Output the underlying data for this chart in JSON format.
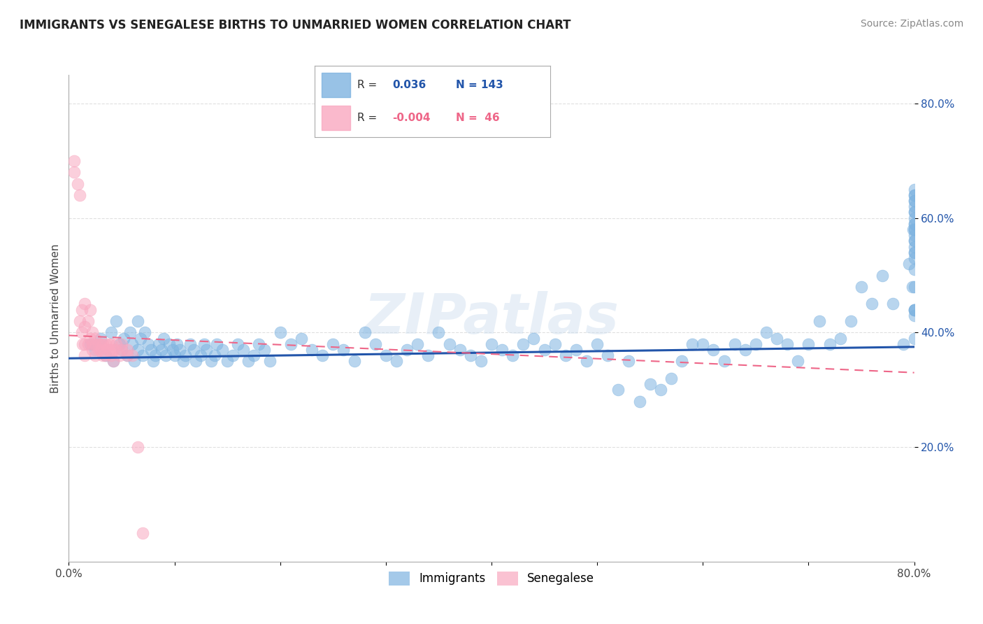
{
  "title": "IMMIGRANTS VS SENEGALESE BIRTHS TO UNMARRIED WOMEN CORRELATION CHART",
  "source": "Source: ZipAtlas.com",
  "ylabel": "Births to Unmarried Women",
  "watermark": "ZIPatlas",
  "xlim": [
    0.0,
    0.8
  ],
  "ylim": [
    0.0,
    0.85
  ],
  "ytick_positions": [
    0.2,
    0.4,
    0.6,
    0.8
  ],
  "ytick_labels": [
    "20.0%",
    "40.0%",
    "60.0%",
    "80.0%"
  ],
  "blue_color": "#7EB3E0",
  "pink_color": "#F9A8C0",
  "blue_line_color": "#2255AA",
  "pink_line_color": "#EE6688",
  "grid_color": "#DDDDDD",
  "background_color": "#FFFFFF",
  "immigrants_x": [
    0.02,
    0.025,
    0.03,
    0.035,
    0.04,
    0.042,
    0.045,
    0.048,
    0.05,
    0.052,
    0.055,
    0.058,
    0.06,
    0.062,
    0.065,
    0.065,
    0.068,
    0.07,
    0.072,
    0.075,
    0.078,
    0.08,
    0.082,
    0.085,
    0.088,
    0.09,
    0.092,
    0.095,
    0.098,
    0.1,
    0.102,
    0.105,
    0.108,
    0.11,
    0.115,
    0.118,
    0.12,
    0.125,
    0.128,
    0.13,
    0.135,
    0.138,
    0.14,
    0.145,
    0.15,
    0.155,
    0.16,
    0.165,
    0.17,
    0.175,
    0.18,
    0.185,
    0.19,
    0.2,
    0.21,
    0.22,
    0.23,
    0.24,
    0.25,
    0.26,
    0.27,
    0.28,
    0.29,
    0.3,
    0.31,
    0.32,
    0.33,
    0.34,
    0.35,
    0.36,
    0.37,
    0.38,
    0.39,
    0.4,
    0.41,
    0.42,
    0.43,
    0.44,
    0.45,
    0.46,
    0.47,
    0.48,
    0.49,
    0.5,
    0.51,
    0.52,
    0.53,
    0.54,
    0.55,
    0.56,
    0.57,
    0.58,
    0.59,
    0.6,
    0.61,
    0.62,
    0.63,
    0.64,
    0.65,
    0.66,
    0.67,
    0.68,
    0.69,
    0.7,
    0.71,
    0.72,
    0.73,
    0.74,
    0.75,
    0.76,
    0.77,
    0.78,
    0.79,
    0.795,
    0.798,
    0.799,
    0.8,
    0.8,
    0.8,
    0.8,
    0.8,
    0.8,
    0.8,
    0.8,
    0.8,
    0.8,
    0.8,
    0.8,
    0.8,
    0.8,
    0.8,
    0.8,
    0.8,
    0.8,
    0.8,
    0.8,
    0.8,
    0.8,
    0.8,
    0.8,
    0.8,
    0.8,
    0.8
  ],
  "immigrants_y": [
    0.38,
    0.37,
    0.39,
    0.36,
    0.4,
    0.35,
    0.42,
    0.38,
    0.37,
    0.39,
    0.36,
    0.4,
    0.38,
    0.35,
    0.42,
    0.37,
    0.39,
    0.36,
    0.4,
    0.38,
    0.37,
    0.35,
    0.36,
    0.38,
    0.37,
    0.39,
    0.36,
    0.38,
    0.37,
    0.36,
    0.38,
    0.37,
    0.35,
    0.36,
    0.38,
    0.37,
    0.35,
    0.36,
    0.38,
    0.37,
    0.35,
    0.36,
    0.38,
    0.37,
    0.35,
    0.36,
    0.38,
    0.37,
    0.35,
    0.36,
    0.38,
    0.37,
    0.35,
    0.4,
    0.38,
    0.39,
    0.37,
    0.36,
    0.38,
    0.37,
    0.35,
    0.4,
    0.38,
    0.36,
    0.35,
    0.37,
    0.38,
    0.36,
    0.4,
    0.38,
    0.37,
    0.36,
    0.35,
    0.38,
    0.37,
    0.36,
    0.38,
    0.39,
    0.37,
    0.38,
    0.36,
    0.37,
    0.35,
    0.38,
    0.36,
    0.3,
    0.35,
    0.28,
    0.31,
    0.3,
    0.32,
    0.35,
    0.38,
    0.38,
    0.37,
    0.35,
    0.38,
    0.37,
    0.38,
    0.4,
    0.39,
    0.38,
    0.35,
    0.38,
    0.42,
    0.38,
    0.39,
    0.42,
    0.48,
    0.45,
    0.5,
    0.45,
    0.38,
    0.52,
    0.48,
    0.58,
    0.64,
    0.55,
    0.58,
    0.51,
    0.57,
    0.44,
    0.39,
    0.48,
    0.43,
    0.58,
    0.54,
    0.56,
    0.63,
    0.61,
    0.61,
    0.64,
    0.59,
    0.44,
    0.56,
    0.62,
    0.44,
    0.65,
    0.53,
    0.59,
    0.54,
    0.6,
    0.63
  ],
  "senegalese_x": [
    0.005,
    0.005,
    0.008,
    0.01,
    0.01,
    0.012,
    0.012,
    0.013,
    0.015,
    0.015,
    0.015,
    0.015,
    0.018,
    0.018,
    0.02,
    0.02,
    0.022,
    0.022,
    0.022,
    0.025,
    0.025,
    0.025,
    0.028,
    0.028,
    0.03,
    0.03,
    0.032,
    0.032,
    0.035,
    0.035,
    0.038,
    0.038,
    0.04,
    0.04,
    0.042,
    0.042,
    0.045,
    0.045,
    0.048,
    0.05,
    0.05,
    0.055,
    0.055,
    0.06,
    0.065,
    0.07
  ],
  "senegalese_y": [
    0.7,
    0.68,
    0.66,
    0.64,
    0.42,
    0.4,
    0.44,
    0.38,
    0.45,
    0.41,
    0.38,
    0.36,
    0.42,
    0.38,
    0.44,
    0.39,
    0.38,
    0.4,
    0.37,
    0.38,
    0.36,
    0.39,
    0.37,
    0.38,
    0.38,
    0.37,
    0.36,
    0.38,
    0.38,
    0.36,
    0.37,
    0.38,
    0.36,
    0.38,
    0.35,
    0.37,
    0.37,
    0.38,
    0.36,
    0.37,
    0.38,
    0.36,
    0.37,
    0.36,
    0.2,
    0.05
  ],
  "imm_trend_x0": 0.0,
  "imm_trend_x1": 0.8,
  "imm_trend_y0": 0.355,
  "imm_trend_y1": 0.375,
  "sen_trend_x0": 0.0,
  "sen_trend_x1": 0.8,
  "sen_trend_y0": 0.395,
  "sen_trend_y1": 0.33
}
